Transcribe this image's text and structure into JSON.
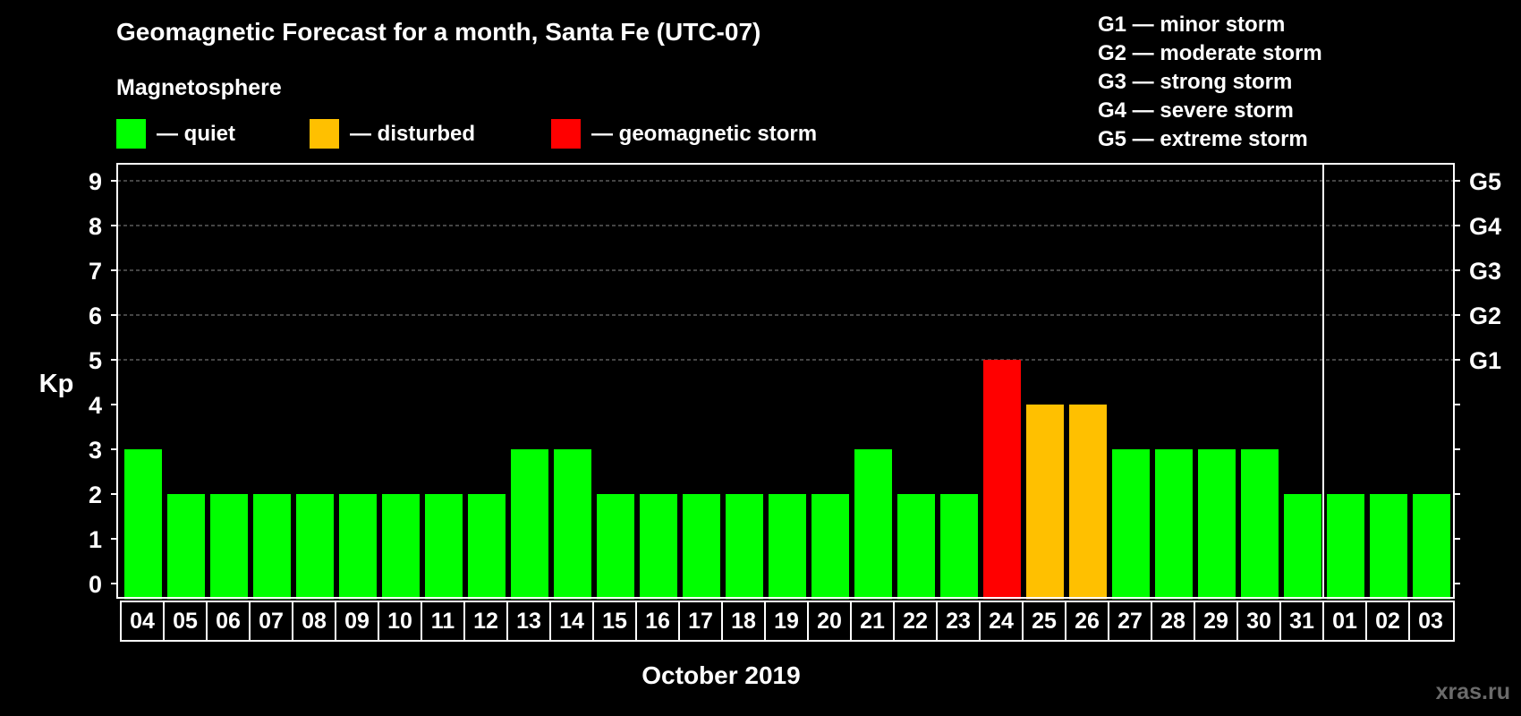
{
  "title": "Geomagnetic Forecast for a month, Santa Fe (UTC-07)",
  "legend": {
    "title": "Magnetosphere",
    "items": [
      {
        "label": "— quiet",
        "color": "#00ff00"
      },
      {
        "label": "— disturbed",
        "color": "#ffc000"
      },
      {
        "label": "— geomagnetic storm",
        "color": "#ff0000"
      }
    ]
  },
  "g_scale_legend": [
    "G1 — minor storm",
    "G2 — moderate storm",
    "G3 — strong storm",
    "G4 — severe storm",
    "G5 — extreme storm"
  ],
  "watermark": "xras.ru",
  "colors": {
    "quiet": "#00ff00",
    "disturbed": "#ffc000",
    "storm": "#ff0000",
    "background": "#000000",
    "axis": "#ffffff",
    "grid": "#8a8a8a"
  },
  "chart_data": {
    "type": "bar",
    "title": "Geomagnetic Forecast for a month, Santa Fe (UTC-07)",
    "xlabel": "October 2019",
    "ylabel": "Kp",
    "ylim": [
      0,
      9
    ],
    "yticks": [
      "0",
      "1",
      "2",
      "3",
      "4",
      "5",
      "6",
      "7",
      "8",
      "9"
    ],
    "g_levels": [
      {
        "kp": 5,
        "label": "G1"
      },
      {
        "kp": 6,
        "label": "G2"
      },
      {
        "kp": 7,
        "label": "G3"
      },
      {
        "kp": 8,
        "label": "G4"
      },
      {
        "kp": 9,
        "label": "G5"
      }
    ],
    "categories": [
      "04",
      "05",
      "06",
      "07",
      "08",
      "09",
      "10",
      "11",
      "12",
      "13",
      "14",
      "15",
      "16",
      "17",
      "18",
      "19",
      "20",
      "21",
      "22",
      "23",
      "24",
      "25",
      "26",
      "27",
      "28",
      "29",
      "30",
      "31",
      "01",
      "02",
      "03"
    ],
    "values": [
      3,
      2,
      2,
      2,
      2,
      2,
      2,
      2,
      2,
      3,
      3,
      2,
      2,
      2,
      2,
      2,
      2,
      3,
      2,
      2,
      5,
      4,
      4,
      3,
      3,
      3,
      3,
      2,
      2,
      2,
      2
    ],
    "month_divider_after": "31",
    "grid": true
  }
}
